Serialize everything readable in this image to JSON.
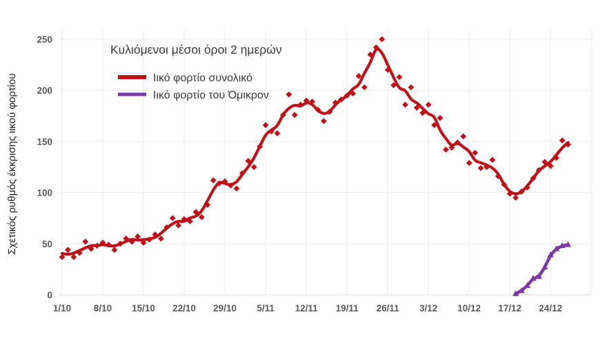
{
  "chart": {
    "title": "Κυλιόμενοι μέσοι όροι 2 ημερών",
    "y_axis_label": "Σχετικός ρυθμός έκκρισης ιικού φορτίου",
    "legend": [
      {
        "label": "Ιικό φορτίο συνολικό",
        "color": "#bf1118",
        "marker": "diamond"
      },
      {
        "label": "Ιικό φορτίο του Όμικρον",
        "color": "#7c3aa6",
        "marker": "triangle"
      }
    ],
    "colors": {
      "grid": "#e9e9e9",
      "axis_line": "#d9d9d9",
      "tick_text": "#5a5a5a",
      "title_text": "#3b3b3b",
      "red_series": "#bf1118",
      "purple_series": "#7c3aa6",
      "background": "#ffffff"
    }
  },
  "chart_data": {
    "type": "line",
    "title": "Κυλιόμενοι μέσοι όροι 2 ημερών",
    "ylabel": "Σχετικός ρυθμός έκκρισης ιικού φορτίου",
    "xlabel": "",
    "grid": true,
    "legend_position": "top-left-inside",
    "x_tick_labels": [
      "1/10",
      "8/10",
      "15/10",
      "22/10",
      "29/10",
      "5/11",
      "12/11",
      "19/11",
      "26/11",
      "3/12",
      "10/12",
      "17/12",
      "24/12"
    ],
    "x_tick_days": [
      0,
      7,
      14,
      21,
      28,
      35,
      42,
      49,
      56,
      63,
      70,
      77,
      84
    ],
    "x_extra_grid_days": [
      91
    ],
    "y_ticks": [
      0,
      50,
      100,
      150,
      200,
      250
    ],
    "ylim": [
      0,
      262
    ],
    "note": "values are daily scatter estimates; red trend line is a centered rolling mean of the scatter (2-day rolling average per title)",
    "series": [
      {
        "name": "Ιικό φορτίο συνολικό",
        "color": "#bf1118",
        "marker": "diamond",
        "line": "rolling-mean",
        "start_day": 0,
        "values": [
          37,
          44,
          37,
          41,
          52,
          45,
          48,
          51,
          49,
          44,
          50,
          55,
          52,
          57,
          51,
          54,
          59,
          55,
          66,
          75,
          68,
          74,
          72,
          81,
          76,
          88,
          112,
          109,
          111,
          107,
          104,
          119,
          131,
          125,
          145,
          166,
          160,
          158,
          176,
          196,
          176,
          186,
          190,
          189,
          181,
          170,
          179,
          188,
          191,
          195,
          197,
          214,
          203,
          235,
          242,
          250,
          220,
          205,
          213,
          186,
          203,
          183,
          178,
          186,
          166,
          173,
          142,
          144,
          149,
          155,
          129,
          139,
          124,
          125,
          132,
          116,
          108,
          99,
          95,
          101,
          105,
          114,
          122,
          130,
          126,
          134,
          151,
          147
        ]
      },
      {
        "name": "Ιικό φορτίο του Όμικρον",
        "color": "#7c3aa6",
        "marker": "triangle",
        "line": "raw",
        "start_day": 78,
        "values": [
          1,
          4,
          9,
          16,
          18,
          27,
          39,
          45,
          48,
          49
        ]
      }
    ]
  }
}
